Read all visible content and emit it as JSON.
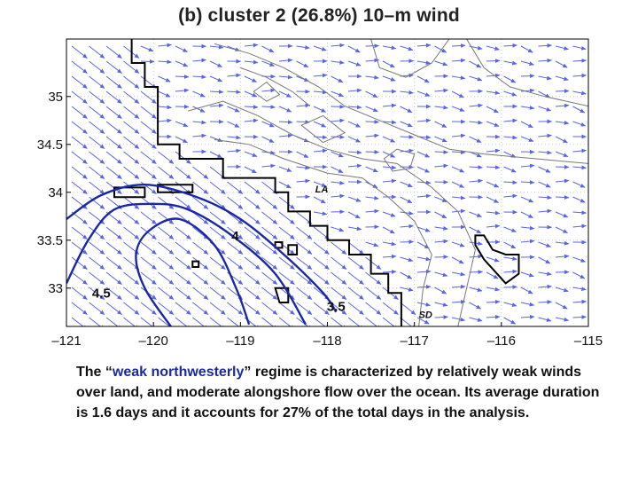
{
  "chart_data": {
    "type": "vector-field-contour-map",
    "title": "(b) cluster 2 (26.8%) 10–m wind",
    "xlim": [
      -121,
      -115
    ],
    "ylim": [
      32.6,
      35.6
    ],
    "x_ticks": [
      {
        "value": -121,
        "label": "–121"
      },
      {
        "value": -120,
        "label": "–120"
      },
      {
        "value": -119,
        "label": "–119"
      },
      {
        "value": -118,
        "label": "–118"
      },
      {
        "value": -117,
        "label": "–117"
      },
      {
        "value": -116,
        "label": "–116"
      },
      {
        "value": -115,
        "label": "–115"
      }
    ],
    "y_ticks": [
      {
        "value": 35,
        "label": "35"
      },
      {
        "value": 34.5,
        "label": "34.5"
      },
      {
        "value": 34,
        "label": "34"
      },
      {
        "value": 33.5,
        "label": "33.5"
      },
      {
        "value": 33,
        "label": "33"
      }
    ],
    "grid": "dotted",
    "contours": [
      {
        "level": "4.5",
        "label_pos": [
          -120.6,
          32.9
        ],
        "points": [
          [
            -119.8,
            32.6
          ],
          [
            -120.1,
            33.0
          ],
          [
            -120.2,
            33.35
          ],
          [
            -120.05,
            33.6
          ],
          [
            -119.7,
            33.72
          ],
          [
            -119.3,
            33.45
          ],
          [
            -119.05,
            33.0
          ],
          [
            -118.9,
            32.62
          ]
        ]
      },
      {
        "level": "4",
        "label_pos": [
          -119.06,
          33.5
        ],
        "points": [
          [
            -121.0,
            33.05
          ],
          [
            -120.75,
            33.5
          ],
          [
            -120.45,
            33.82
          ],
          [
            -120.0,
            33.88
          ],
          [
            -119.6,
            33.82
          ],
          [
            -119.1,
            33.55
          ],
          [
            -118.6,
            33.15
          ],
          [
            -118.25,
            32.62
          ]
        ]
      },
      {
        "level": "3.5",
        "label_pos": [
          -117.9,
          32.76
        ],
        "points": [
          [
            -121.0,
            33.72
          ],
          [
            -120.6,
            33.97
          ],
          [
            -120.1,
            34.08
          ],
          [
            -119.5,
            33.95
          ],
          [
            -119.0,
            33.72
          ],
          [
            -118.5,
            33.35
          ],
          [
            -118.05,
            32.95
          ],
          [
            -117.9,
            32.75
          ]
        ]
      }
    ],
    "annotations": [
      {
        "text": "LA",
        "x": -118.14,
        "y": 34.0
      },
      {
        "text": "SD",
        "x": -116.95,
        "y": 32.69
      }
    ],
    "wind": {
      "ocean_u": 0.45,
      "ocean_v": -0.35,
      "land_u": 0.55,
      "land_v": -0.08
    },
    "colors": {
      "arrows": "#5a64e6",
      "contour": "#1a28a8",
      "coast": "#000000",
      "topo": "#777777"
    }
  },
  "caption": {
    "prefix": "The “",
    "highlight": "weak northwesterly",
    "suffix": "” regime is characterized by relatively weak winds over land, and moderate alongshore flow over the ocean. Its average duration is 1.6 days and it accounts for 27% of the total days in the analysis."
  }
}
